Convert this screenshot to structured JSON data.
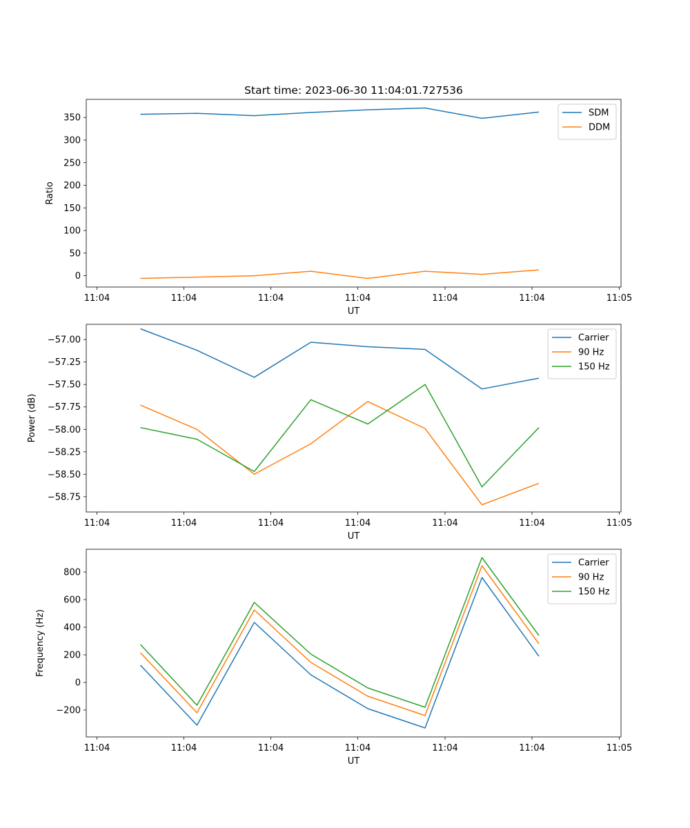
{
  "figure_title": "Start time: 2023-06-30 11:04:01.727536",
  "chart_data": [
    {
      "type": "line",
      "title": "Start time: 2023-06-30 11:04:01.727536",
      "xlabel": "UT",
      "ylabel": "Ratio",
      "x_tick_labels": [
        "11:04",
        "11:04",
        "11:04",
        "11:04",
        "11:04",
        "11:04",
        "11:05"
      ],
      "y_ticks": [
        0,
        50,
        100,
        150,
        200,
        250,
        300,
        350
      ],
      "ylim": [
        -25,
        390
      ],
      "legend_position": "top-right",
      "grid": false,
      "series": [
        {
          "name": "SDM",
          "color": "#1f77b4",
          "values": [
            357,
            359,
            354,
            361,
            367,
            371,
            348,
            362
          ]
        },
        {
          "name": "DDM",
          "color": "#ff7f0e",
          "values": [
            -6,
            -3,
            0,
            10,
            -6,
            10,
            3,
            13
          ]
        }
      ]
    },
    {
      "type": "line",
      "title": "",
      "xlabel": "UT",
      "ylabel": "Power (dB)",
      "x_tick_labels": [
        "11:04",
        "11:04",
        "11:04",
        "11:04",
        "11:04",
        "11:04",
        "11:05"
      ],
      "y_ticks": [
        -58.75,
        -58.5,
        -58.25,
        -58.0,
        -57.75,
        -57.5,
        -57.25,
        -57.0
      ],
      "y_tick_labels": [
        "−58.75",
        "−58.50",
        "−58.25",
        "−58.00",
        "−57.75",
        "−57.50",
        "−57.25",
        "−57.00"
      ],
      "ylim": [
        -58.92,
        -56.83
      ],
      "legend_position": "top-right",
      "grid": false,
      "series": [
        {
          "name": "Carrier",
          "color": "#1f77b4",
          "values": [
            -56.88,
            -57.12,
            -57.42,
            -57.03,
            -57.08,
            -57.11,
            -57.55,
            -57.43
          ]
        },
        {
          "name": "90 Hz",
          "color": "#ff7f0e",
          "values": [
            -57.73,
            -58.0,
            -58.5,
            -58.16,
            -57.69,
            -57.99,
            -58.84,
            -58.6
          ]
        },
        {
          "name": "150 Hz",
          "color": "#2ca02c",
          "values": [
            -57.98,
            -58.11,
            -58.47,
            -57.67,
            -57.94,
            -57.5,
            -58.64,
            -57.98
          ]
        }
      ]
    },
    {
      "type": "line",
      "title": "",
      "xlabel": "UT",
      "ylabel": "Frequency (Hz)",
      "x_tick_labels": [
        "11:04",
        "11:04",
        "11:04",
        "11:04",
        "11:04",
        "11:04",
        "11:05"
      ],
      "y_ticks": [
        -200,
        0,
        200,
        400,
        600,
        800
      ],
      "y_tick_labels": [
        "−200",
        "0",
        "200",
        "400",
        "600",
        "800"
      ],
      "ylim": [
        -395,
        965
      ],
      "legend_position": "top-right",
      "grid": false,
      "series": [
        {
          "name": "Carrier",
          "color": "#1f77b4",
          "values": [
            125,
            -310,
            435,
            55,
            -190,
            -330,
            760,
            190
          ]
        },
        {
          "name": "90 Hz",
          "color": "#ff7f0e",
          "values": [
            215,
            -220,
            525,
            145,
            -100,
            -240,
            845,
            280
          ]
        },
        {
          "name": "150 Hz",
          "color": "#2ca02c",
          "values": [
            275,
            -165,
            580,
            205,
            -40,
            -180,
            905,
            340
          ]
        }
      ]
    }
  ]
}
